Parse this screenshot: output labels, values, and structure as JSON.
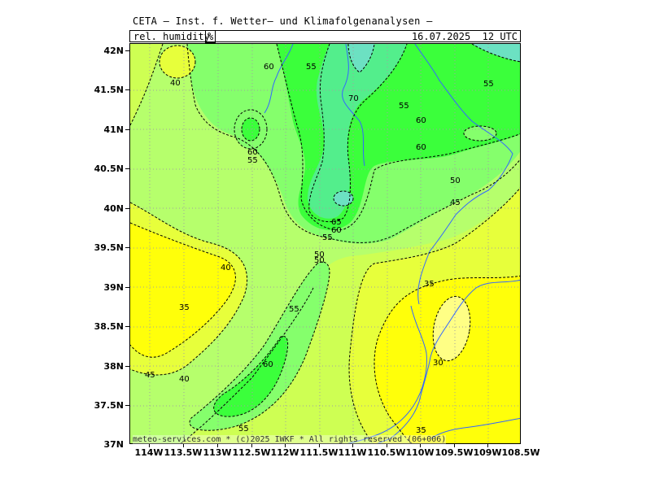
{
  "header": {
    "title": "CETA — Inst. f. Wetter— und Klimafolgenanalysen —",
    "parameter": "rel._humidity",
    "unit": "%",
    "valid_time": "16.07.2025  12 UTC"
  },
  "axes": {
    "lat_labels": [
      "42N",
      "41.5N",
      "41N",
      "40.5N",
      "40N",
      "39.5N",
      "39N",
      "38.5N",
      "38N",
      "37.5N",
      "37N"
    ],
    "lon_labels": [
      "114W",
      "113.5W",
      "113W",
      "112.5W",
      "112W",
      "111.5W",
      "111W",
      "110.5W",
      "110W",
      "109.5W",
      "109W",
      "108.5W"
    ]
  },
  "footer": {
    "copyright": "meteo-services.com * (c)2025 IWKF * All rights reserved (06+006)"
  },
  "contour_labels": {
    "l1": "60",
    "l2": "55",
    "l3": "40",
    "l4": "70",
    "l5": "55",
    "l6": "60",
    "l7": "60",
    "l8": "55",
    "l9": "60",
    "l10": "55",
    "l11": "50",
    "l12": "45",
    "l13": "65",
    "l14": "60",
    "l15": "55",
    "l16": "50",
    "l17": "50",
    "l18": "40",
    "l19": "35",
    "l20": "35",
    "l21": "55",
    "l22": "60",
    "l23": "30",
    "l24": "45",
    "l25": "40",
    "l26": "55",
    "l27": "35"
  },
  "colors": {
    "rh_30": "#ffff80",
    "rh_35": "#ffff00",
    "rh_40": "#e6ff33",
    "rh_45": "#ccff4d",
    "rh_50": "#b3ff66",
    "rh_55": "#80ff66",
    "rh_60": "#33ff33",
    "rh_65": "#4dee88",
    "rh_70": "#66e0c0",
    "river": "#3366ff",
    "grid": "#a0a0a0"
  }
}
